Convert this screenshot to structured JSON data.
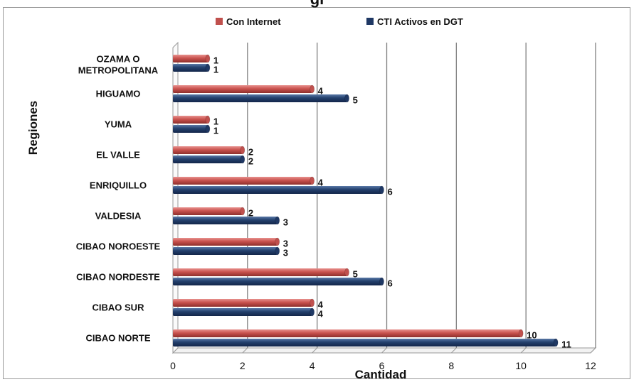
{
  "chart_data": {
    "type": "bar",
    "orientation": "horizontal",
    "title": "",
    "title_partial": "gi",
    "categories": [
      "CIBAO NORTE",
      "CIBAO SUR",
      "CIBAO NORDESTE",
      "CIBAO NOROESTE",
      "VALDESIA",
      "ENRIQUILLO",
      "EL VALLE",
      "YUMA",
      "HIGUAMO",
      "OZAMA O METROPOLITANA"
    ],
    "series": [
      {
        "name": "Con Internet",
        "values": [
          10,
          4,
          5,
          3,
          2,
          4,
          2,
          1,
          4,
          1
        ],
        "color": "#c0504d"
      },
      {
        "name": "CTI Activos en DGT",
        "values": [
          11,
          4,
          6,
          3,
          3,
          6,
          2,
          1,
          5,
          1
        ],
        "color": "#1f3864"
      }
    ],
    "xlabel": "Cantidad",
    "ylabel": "Regiones",
    "xlim": [
      0,
      12
    ],
    "xticks": [
      0,
      2,
      4,
      6,
      8,
      10,
      12
    ],
    "grid": "vertical",
    "legend_position": "top"
  }
}
